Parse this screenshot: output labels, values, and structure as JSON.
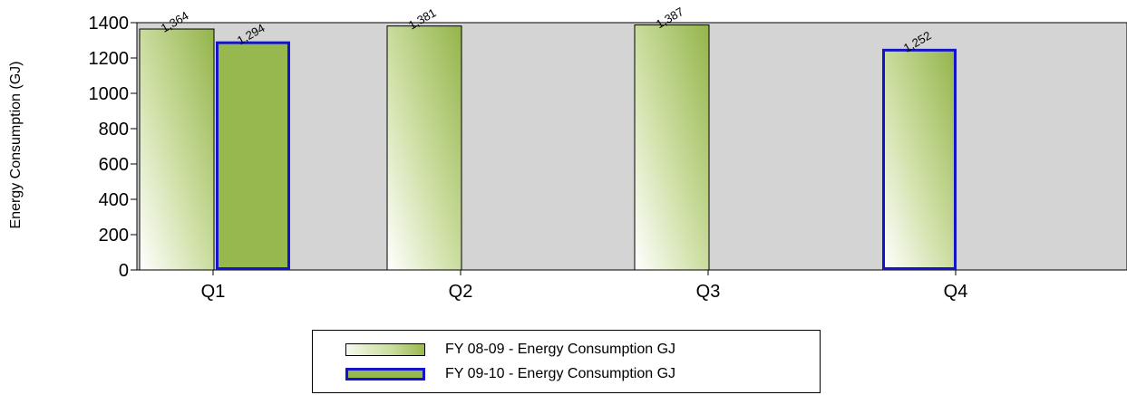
{
  "chart_data": {
    "type": "bar",
    "title": "",
    "xlabel": "",
    "ylabel": "Energy Consumption (GJ)",
    "ylim": [
      0,
      1400
    ],
    "yticks": [
      "0",
      "200",
      "400",
      "600",
      "800",
      "1000",
      "1200",
      "1400"
    ],
    "yticks_values": [
      0,
      200,
      400,
      600,
      800,
      1000,
      1200,
      1400
    ],
    "categories": [
      "Q1",
      "Q2",
      "Q3",
      "Q4"
    ],
    "grid": false,
    "legend_position": "bottom-center",
    "series": [
      {
        "name": "FY 08-09 - Energy Consumption GJ",
        "values": [
          1364,
          1381,
          1387,
          null
        ],
        "labels": [
          "1,364",
          "1,381",
          "1,387",
          ""
        ],
        "fill": "gradient",
        "border_color": "#000000",
        "color": "#9ab84f"
      },
      {
        "name": "FY 09-10 - Energy Consumption GJ",
        "values": [
          1294,
          null,
          null,
          1252
        ],
        "labels": [
          "1,294",
          "",
          "",
          "1,252"
        ],
        "fill": "mixed",
        "border_color": "#1414c8",
        "color": "#97b84e"
      }
    ],
    "plot_background": "#d4d4d4"
  }
}
